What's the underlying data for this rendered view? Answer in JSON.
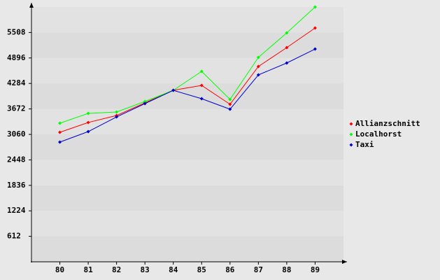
{
  "chart_data": {
    "type": "line",
    "categories": [
      "80",
      "81",
      "82",
      "83",
      "84",
      "85",
      "86",
      "87",
      "88",
      "89"
    ],
    "series": [
      {
        "name": "Allianzschnitt",
        "color": "#ff0000",
        "values": [
          3110,
          3346,
          3514,
          3817,
          4119,
          4237,
          3783,
          4691,
          5145,
          5616
        ]
      },
      {
        "name": "Localhorst",
        "color": "#00ff00",
        "values": [
          3329,
          3564,
          3598,
          3850,
          4119,
          4573,
          3901,
          4909,
          5498,
          6120
        ]
      },
      {
        "name": "Taxi",
        "color": "#0000cc",
        "values": [
          2875,
          3127,
          3480,
          3800,
          4119,
          3917,
          3665,
          4489,
          4775,
          5111
        ]
      }
    ],
    "ylim": [
      0,
      6120
    ],
    "yticks": [
      612,
      1224,
      1836,
      2448,
      3060,
      3672,
      4284,
      4896,
      5508
    ],
    "grid": true,
    "legend_position": "right"
  }
}
